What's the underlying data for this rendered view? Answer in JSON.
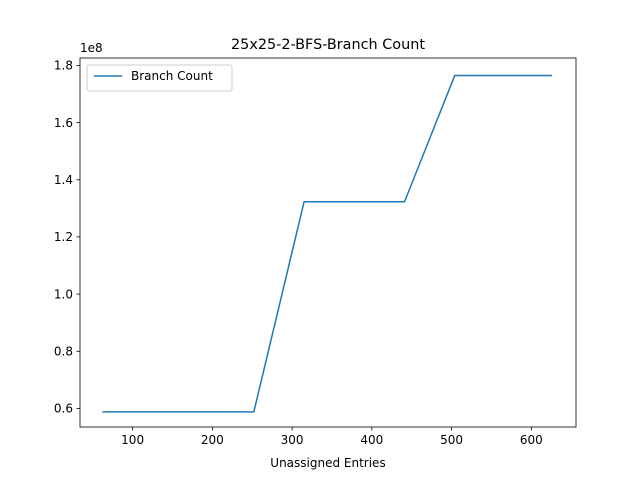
{
  "chart_data": {
    "type": "line",
    "title": "25x25-2-BFS-Branch Count",
    "xlabel": "Unassigned Entries",
    "ylabel": "",
    "y_offset_label": "1e8",
    "xlim": [
      34,
      656
    ],
    "ylim": [
      0.535,
      1.826
    ],
    "xticks": [
      100,
      200,
      300,
      400,
      500,
      600
    ],
    "yticks": [
      0.6,
      0.8,
      1.0,
      1.2,
      1.4,
      1.6,
      1.8
    ],
    "ytick_labels": [
      "0.6",
      "0.8",
      "1.0",
      "1.2",
      "1.4",
      "1.6",
      "1.8"
    ],
    "grid": false,
    "legend_position": "upper-left",
    "series": [
      {
        "name": "Branch Count",
        "color": "#1f77b4",
        "x": [
          63,
          125,
          188,
          252,
          315,
          378,
          441,
          504,
          567,
          625
        ],
        "y": [
          0.588,
          0.588,
          0.588,
          0.588,
          1.323,
          1.323,
          1.323,
          1.765,
          1.765,
          1.765
        ]
      }
    ]
  }
}
